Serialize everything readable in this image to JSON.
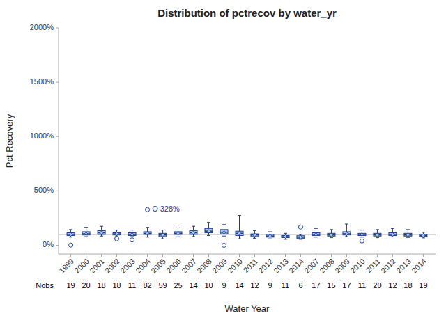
{
  "chart_data": {
    "type": "box",
    "title": "Distribution of pctrecov by water_yr",
    "x_label": "Water Year",
    "y_label": "Pct Recovery",
    "categories": [
      "1999",
      "2000",
      "2001",
      "2002",
      "2003",
      "2004",
      "2005",
      "2006",
      "2007",
      "2008",
      "2009",
      "2010",
      "2011",
      "2012",
      "2013",
      "2014",
      "2007",
      "2008",
      "2009",
      "2010",
      "2011",
      "2012",
      "2013",
      "2014"
    ],
    "medians": [
      100,
      105,
      115,
      105,
      100,
      110,
      95,
      110,
      115,
      130,
      120,
      110,
      95,
      85,
      80,
      75,
      100,
      95,
      105,
      100,
      95,
      100,
      95,
      90
    ],
    "q1": [
      90,
      95,
      100,
      95,
      90,
      100,
      80,
      100,
      100,
      115,
      105,
      90,
      80,
      75,
      70,
      65,
      90,
      85,
      95,
      90,
      85,
      90,
      85,
      82
    ],
    "q3": [
      115,
      125,
      135,
      115,
      115,
      125,
      110,
      125,
      135,
      155,
      145,
      130,
      105,
      100,
      90,
      88,
      115,
      110,
      125,
      110,
      110,
      115,
      110,
      100
    ],
    "whislo": [
      75,
      80,
      85,
      85,
      80,
      75,
      60,
      78,
      80,
      90,
      85,
      60,
      65,
      60,
      55,
      55,
      75,
      70,
      80,
      75,
      70,
      78,
      72,
      68
    ],
    "whishi": [
      145,
      165,
      175,
      140,
      140,
      165,
      140,
      160,
      175,
      210,
      190,
      275,
      135,
      125,
      110,
      100,
      155,
      145,
      195,
      140,
      145,
      155,
      145,
      120
    ],
    "flier_indices": [
      0,
      3,
      4,
      5,
      10,
      15,
      19
    ],
    "flier_values": [
      2,
      60,
      50,
      328,
      0,
      168,
      40
    ],
    "annotations": [
      {
        "text": "O 328%",
        "flier": 3
      }
    ],
    "reference_line": 100,
    "nobs_label": "Nobs",
    "nobs": [
      19,
      20,
      18,
      18,
      11,
      82,
      59,
      25,
      14,
      10,
      9,
      14,
      12,
      9,
      11,
      6,
      17,
      15,
      17,
      11,
      20,
      12,
      18,
      19
    ],
    "color": "#aec6e8",
    "ylim": [
      -80,
      2000
    ],
    "yticks": [
      {
        "value": 0,
        "label": "0%"
      },
      {
        "value": 500,
        "label": "500%"
      },
      {
        "value": 1000,
        "label": "1000%"
      },
      {
        "value": 1500,
        "label": "1500%"
      },
      {
        "value": 2000,
        "label": "2000%"
      }
    ],
    "grid": false
  }
}
